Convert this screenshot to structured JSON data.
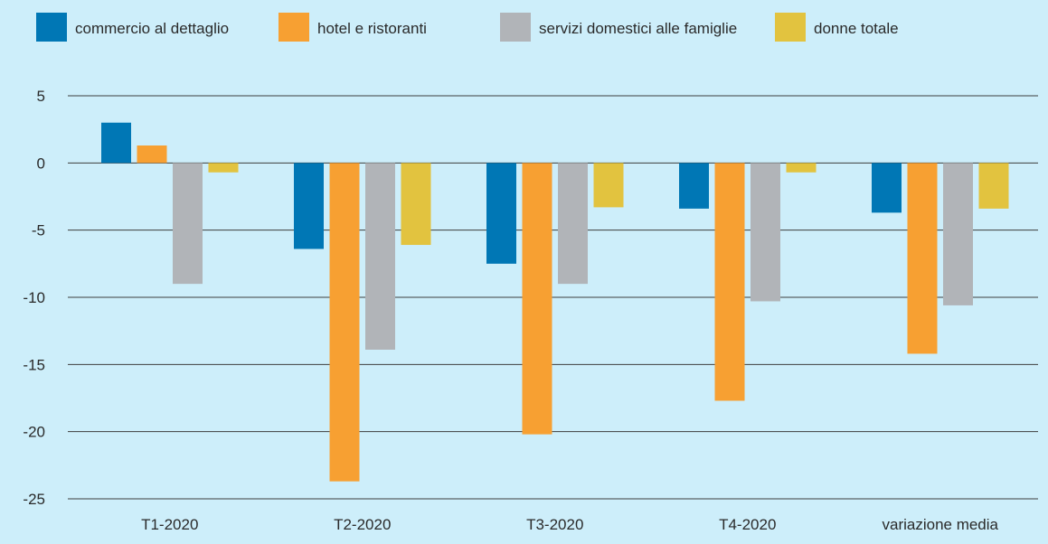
{
  "chart_data": {
    "type": "bar",
    "categories": [
      "T1-2020",
      "T2-2020",
      "T3-2020",
      "T4-2020",
      "variazione media"
    ],
    "series": [
      {
        "name": "commercio al dettaglio",
        "color": "#0077b5",
        "values": [
          3.0,
          -6.4,
          -7.5,
          -3.4,
          -3.7
        ]
      },
      {
        "name": "hotel e ristoranti",
        "color": "#f7a032",
        "values": [
          1.3,
          -23.7,
          -20.2,
          -17.7,
          -14.2
        ]
      },
      {
        "name": "servizi domestici alle famiglie",
        "color": "#b1b4b8",
        "values": [
          -9.0,
          -13.9,
          -9.0,
          -10.3,
          -10.6
        ]
      },
      {
        "name": "donne totale",
        "color": "#e2c33f",
        "values": [
          -0.7,
          -6.1,
          -3.3,
          -0.7,
          -3.4
        ]
      }
    ],
    "ylim": [
      -25,
      5
    ],
    "yticks": [
      5,
      0,
      -5,
      -10,
      -15,
      -20,
      -25
    ],
    "ytick_labels": [
      "5",
      "0",
      "-5",
      "-10",
      "-15",
      "-20",
      "-25"
    ],
    "grid": true,
    "legend_position": "top",
    "title": "",
    "xlabel": "",
    "ylabel": ""
  }
}
